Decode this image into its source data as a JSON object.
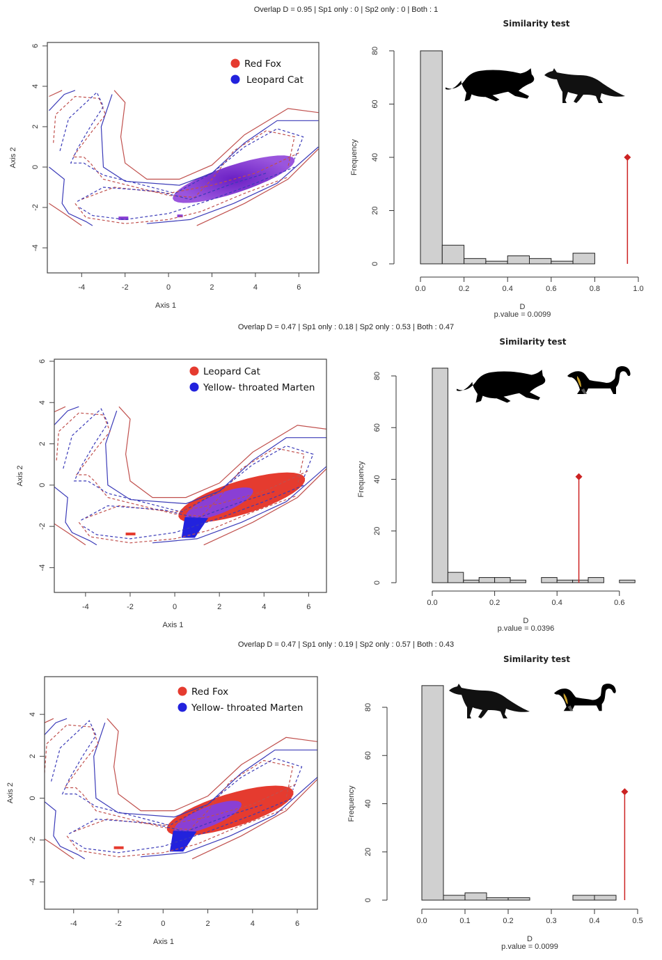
{
  "colors": {
    "species1": "#e53b2f",
    "species2": "#2222dd",
    "overlap": "#8a3fd4",
    "contour_red": "#c0504d",
    "contour_blue": "#3a3ab8",
    "hist_fill": "#d0d0d0",
    "observed": "#cc2222"
  },
  "panels": [
    {
      "header": "Overlap D =  0.95  | Sp1 only : 0  | Sp2 only : 0  | Both : 1",
      "niche": {
        "legend": [
          "Red Fox",
          "Leopard Cat"
        ],
        "xlabel": "Axis 1",
        "ylabel": "Axis 2",
        "xticks": [
          "-4",
          "-2",
          "0",
          "2",
          "4",
          "6"
        ],
        "yticks": [
          "6",
          "4",
          "2",
          "0",
          "-2",
          "-4"
        ],
        "silhouettes": [
          "cat-silhouette",
          "fox-silhouette"
        ]
      },
      "hist": {
        "title": "Similarity test",
        "xlabel": "D",
        "ylabel": "Frequency",
        "pvalue": "p.value =  0.0099",
        "xticks": [
          "0.0",
          "0.2",
          "0.4",
          "0.6",
          "0.8",
          "1.0"
        ],
        "yticks": [
          "0",
          "20",
          "40",
          "60",
          "80"
        ]
      }
    },
    {
      "header": "Overlap D =  0.47  | Sp1 only : 0.18  | Sp2 only : 0.53  | Both : 0.47",
      "niche": {
        "legend": [
          "Leopard Cat",
          "Yellow- throated Marten"
        ],
        "xlabel": "Axis 1",
        "ylabel": "Axis 2",
        "xticks": [
          "-4",
          "-2",
          "0",
          "2",
          "4",
          "6"
        ],
        "yticks": [
          "6",
          "4",
          "2",
          "0",
          "-2",
          "-4"
        ],
        "silhouettes": [
          "cat-silhouette",
          "marten-silhouette"
        ]
      },
      "hist": {
        "title": "Similarity test",
        "xlabel": "D",
        "ylabel": "Frequency",
        "pvalue": "p.value =  0.0396",
        "xticks": [
          "0.0",
          "0.2",
          "0.4",
          "0.6"
        ],
        "yticks": [
          "0",
          "20",
          "40",
          "60",
          "80"
        ]
      }
    },
    {
      "header": "Overlap D =  0.47  | Sp1 only : 0.19  | Sp2 only : 0.57  | Both : 0.43",
      "niche": {
        "legend": [
          "Red Fox",
          "Yellow- throated Marten"
        ],
        "xlabel": "Axis 1",
        "ylabel": "Axis 2",
        "xticks": [
          "-4",
          "-2",
          "0",
          "2",
          "4",
          "6"
        ],
        "yticks": [
          "4",
          "2",
          "0",
          "-2",
          "-4"
        ],
        "silhouettes": [
          "fox-silhouette",
          "marten-silhouette"
        ]
      },
      "hist": {
        "title": "Similarity test",
        "xlabel": "D",
        "ylabel": "Frequency",
        "pvalue": "p.value =  0.0099",
        "xticks": [
          "0.0",
          "0.1",
          "0.2",
          "0.3",
          "0.4",
          "0.5"
        ],
        "yticks": [
          "0",
          "20",
          "40",
          "60",
          "80"
        ]
      }
    }
  ],
  "chart_data": [
    {
      "type": "bar",
      "title": "Similarity test",
      "xlabel": "D",
      "ylabel": "Frequency",
      "xlim": [
        0,
        1.0
      ],
      "ylim": [
        0,
        80
      ],
      "bin_edges": [
        0,
        0.1,
        0.2,
        0.3,
        0.4,
        0.5,
        0.6,
        0.7,
        0.8
      ],
      "values": [
        80,
        7,
        2,
        1,
        3,
        2,
        1,
        4
      ],
      "observed_D": 0.95,
      "observed_marker_height": 40,
      "pvalue": 0.0099,
      "species": [
        "Red Fox",
        "Leopard Cat"
      ]
    },
    {
      "type": "bar",
      "title": "Similarity test",
      "xlabel": "D",
      "ylabel": "Frequency",
      "xlim": [
        0,
        0.6
      ],
      "ylim": [
        0,
        80
      ],
      "bin_edges": [
        0,
        0.05,
        0.1,
        0.15,
        0.2,
        0.25,
        0.3,
        0.35,
        0.4,
        0.45,
        0.5,
        0.55,
        0.6,
        0.65
      ],
      "values": [
        83,
        4,
        1,
        2,
        2,
        1,
        0,
        2,
        1,
        1,
        2,
        0,
        1
      ],
      "observed_D": 0.47,
      "observed_marker_height": 41,
      "pvalue": 0.0396,
      "species": [
        "Leopard Cat",
        "Yellow- throated Marten"
      ]
    },
    {
      "type": "bar",
      "title": "Similarity test",
      "xlabel": "D",
      "ylabel": "Frequency",
      "xlim": [
        0,
        0.5
      ],
      "ylim": [
        0,
        80
      ],
      "bin_edges": [
        0,
        0.05,
        0.1,
        0.15,
        0.2,
        0.25,
        0.3,
        0.35,
        0.4,
        0.45
      ],
      "values": [
        89,
        2,
        3,
        1,
        1,
        0,
        0,
        2,
        2
      ],
      "observed_D": 0.47,
      "observed_marker_height": 45,
      "pvalue": 0.0099,
      "species": [
        "Red Fox",
        "Yellow- throated Marten"
      ]
    },
    {
      "type": "heatmap",
      "title": "Niche overlap: Red Fox vs Leopard Cat",
      "xlabel": "Axis 1",
      "ylabel": "Axis 2",
      "xlim": [
        -5.5,
        6.9
      ],
      "ylim": [
        -5.2,
        6.2
      ],
      "legend": [
        "Red Fox",
        "Leopard Cat"
      ],
      "overlap_D": 0.95,
      "sp1_only": 0,
      "sp2_only": 0,
      "both": 1
    },
    {
      "type": "heatmap",
      "title": "Niche overlap: Leopard Cat vs Yellow-throated Marten",
      "xlabel": "Axis 1",
      "ylabel": "Axis 2",
      "xlim": [
        -5.4,
        6.8
      ],
      "ylim": [
        -5.2,
        6.1
      ],
      "legend": [
        "Leopard Cat",
        "Yellow- throated Marten"
      ],
      "overlap_D": 0.47,
      "sp1_only": 0.18,
      "sp2_only": 0.53,
      "both": 0.47
    },
    {
      "type": "heatmap",
      "title": "Niche overlap: Red Fox vs Yellow-throated Marten",
      "xlabel": "Axis 1",
      "ylabel": "Axis 2",
      "xlim": [
        -5.3,
        6.9
      ],
      "ylim": [
        -5.3,
        5.8
      ],
      "legend": [
        "Red Fox",
        "Yellow- throated Marten"
      ],
      "overlap_D": 0.47,
      "sp1_only": 0.19,
      "sp2_only": 0.57,
      "both": 0.43
    }
  ]
}
